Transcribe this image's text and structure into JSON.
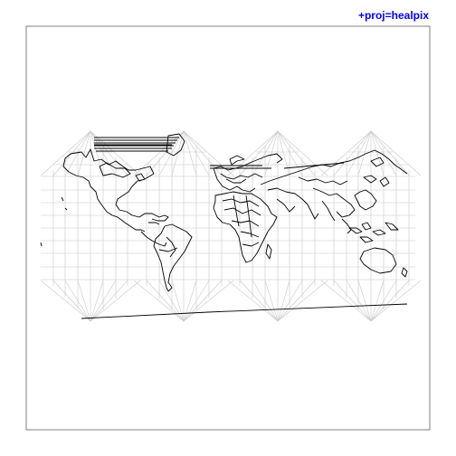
{
  "projection_label": "+proj=healpix",
  "colors": {
    "label": "#0000ff",
    "frame": "#808080",
    "graticule": "#c8c8c8",
    "coastline": "#000000",
    "background": "#ffffff"
  }
}
